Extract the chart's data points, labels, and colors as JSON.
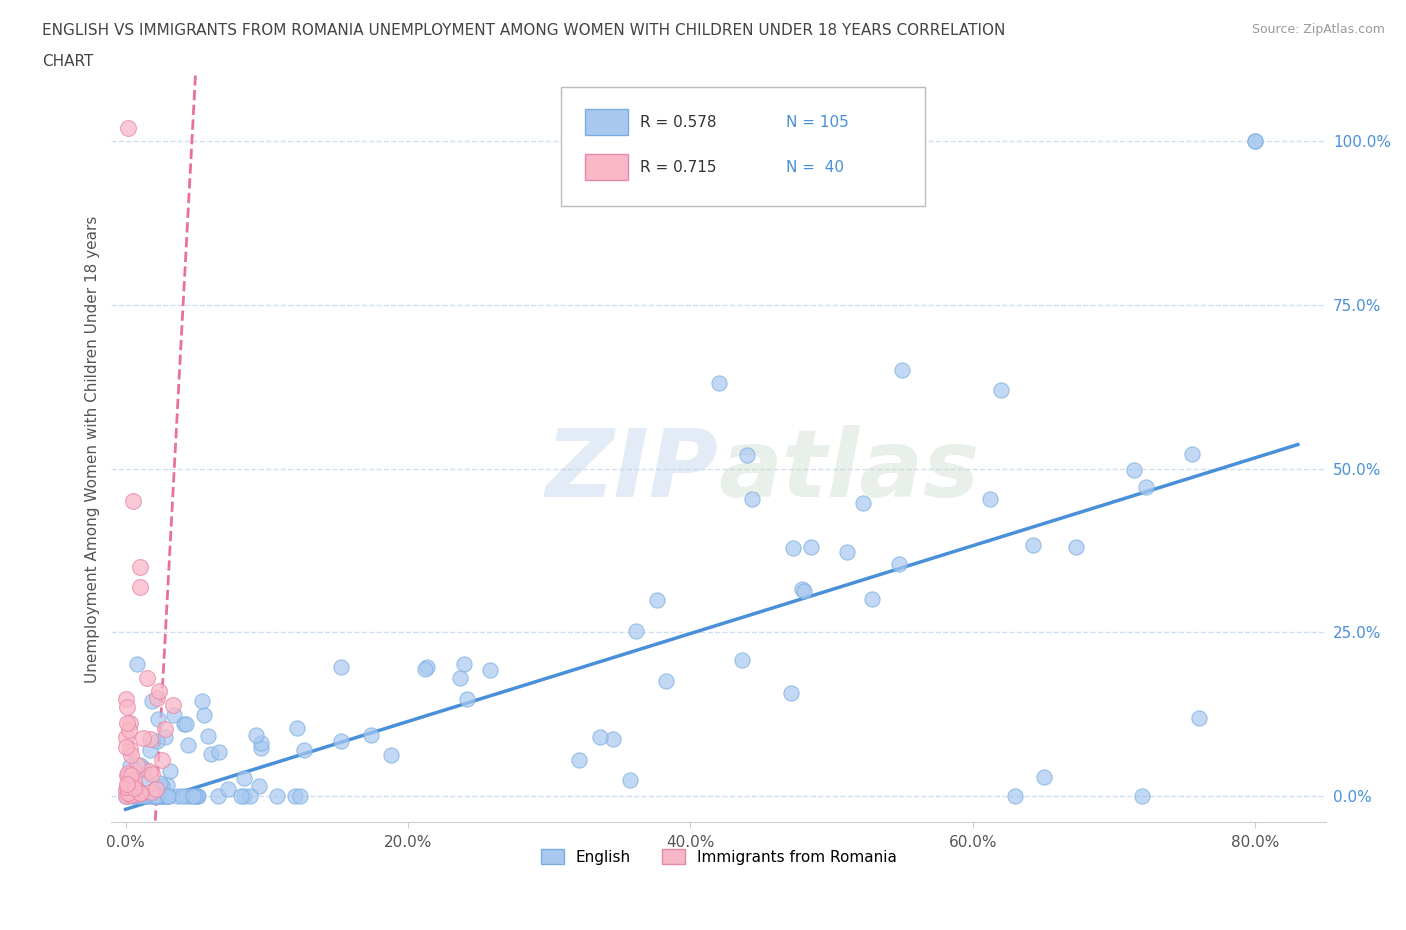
{
  "title_line1": "ENGLISH VS IMMIGRANTS FROM ROMANIA UNEMPLOYMENT AMONG WOMEN WITH CHILDREN UNDER 18 YEARS CORRELATION",
  "title_line2": "CHART",
  "source": "Source: ZipAtlas.com",
  "ylabel": "Unemployment Among Women with Children Under 18 years",
  "english_color": "#a8c8f0",
  "english_edge": "#7aaee0",
  "romania_color": "#f9b8c8",
  "romania_edge": "#e888a8",
  "english_line_color": "#4a90d9",
  "romania_line_color": "#e8709a",
  "legend_R1": "R = 0.578",
  "legend_N1": "N = 105",
  "legend_R2": "R = 0.715",
  "legend_N2": "N =  40",
  "english_label": "English",
  "romania_label": "Immigrants from Romania",
  "grid_color": "#d0dff0",
  "background_color": "#ffffff",
  "watermark_zip": "ZIP",
  "watermark_atlas": "atlas",
  "english_R": 0.578,
  "english_N": 105,
  "romania_R": 0.715,
  "romania_N": 40,
  "yticks": [
    0.0,
    0.25,
    0.5,
    0.75,
    1.0
  ],
  "ytick_labels": [
    "0.0%",
    "25.0%",
    "50.0%",
    "75.0%",
    "100.0%"
  ],
  "xticks": [
    0.0,
    0.2,
    0.4,
    0.6,
    0.8
  ],
  "xtick_labels": [
    "0.0%",
    "20.0%",
    "40.0%",
    "60.0%",
    "80.0%"
  ],
  "xlim": [
    -0.01,
    0.85
  ],
  "ylim": [
    -0.04,
    1.1
  ],
  "eng_trend_x0": 0.0,
  "eng_trend_y0": -0.02,
  "eng_trend_x1": 0.82,
  "eng_trend_y1": 0.53,
  "rom_trend_x0": 0.022,
  "rom_trend_y0": -0.04,
  "rom_trend_x1": 0.022,
  "rom_trend_y1": 1.1,
  "rom_trend_slope": 40.0,
  "rom_trend_intercept": -0.88
}
